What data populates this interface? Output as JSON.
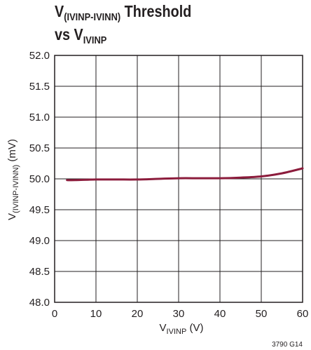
{
  "title": {
    "line1_main": "V",
    "line1_sub": "(IVINP-IVINN)",
    "line1_rest": " Threshold",
    "line2_main": "vs V",
    "line2_sub": "IVINP"
  },
  "figure_code": "3790 G14",
  "colors": {
    "line": "#8c1c3c",
    "grid": "#231f20",
    "text": "#231f20"
  },
  "chart_data": {
    "type": "line",
    "xlabel": {
      "main": "V",
      "sub": "IVINP",
      "rest": " (V)"
    },
    "ylabel": {
      "main": "V",
      "sub": "(IVINP-IVINN)",
      "rest": " (mV)"
    },
    "xlim": [
      0,
      60
    ],
    "ylim": [
      48.0,
      52.0
    ],
    "xticks": [
      0,
      10,
      20,
      30,
      40,
      50,
      60
    ],
    "xtick_labels": [
      "0",
      "10",
      "20",
      "30",
      "40",
      "50",
      "60"
    ],
    "yticks": [
      48.0,
      48.5,
      49.0,
      49.5,
      50.0,
      50.5,
      51.0,
      51.5,
      52.0
    ],
    "ytick_labels": [
      "48.0",
      "48.5",
      "49.0",
      "49.5",
      "50.0",
      "50.5",
      "51.0",
      "51.5",
      "52.0"
    ],
    "grid": true,
    "series": [
      {
        "x": [
          3,
          5,
          10,
          15,
          20,
          25,
          30,
          35,
          40,
          45,
          50,
          55,
          60
        ],
        "y": [
          49.98,
          49.98,
          49.99,
          49.99,
          49.99,
          50.0,
          50.01,
          50.01,
          50.01,
          50.02,
          50.04,
          50.09,
          50.17
        ]
      }
    ]
  }
}
